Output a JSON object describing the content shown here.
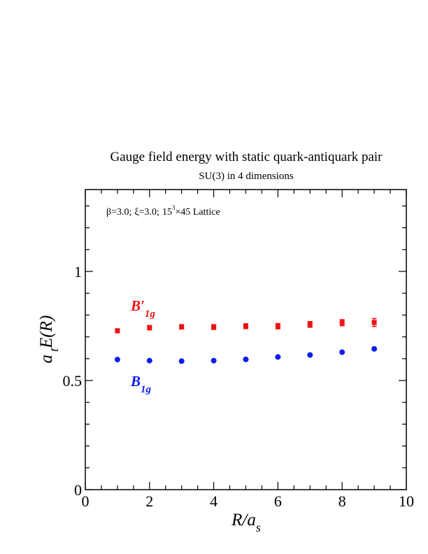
{
  "chart_data": {
    "type": "scatter",
    "title": "Gauge field energy with static quark-antiquark pair",
    "subtitle": "SU(3) in 4 dimensions",
    "annotation": {
      "beta": "β=3.0;",
      "xi": "ξ=3.0;",
      "lattice_base": "15",
      "lattice_exp": "3",
      "lattice_rest": "×45 Lattice"
    },
    "xlabel": {
      "main": "R/a",
      "sub": "s"
    },
    "ylabel": {
      "pre": "a",
      "sub": "t",
      "post": "E(R)"
    },
    "xlim": [
      0,
      10
    ],
    "ylim": [
      0,
      1.375
    ],
    "x_ticks": [
      "0",
      "2",
      "4",
      "6",
      "8",
      "10"
    ],
    "y_ticks": [
      "0",
      "0.5",
      "1"
    ],
    "series": [
      {
        "name_main": "B′",
        "name_sub": "1g",
        "color": "#ee1111",
        "marker": "square",
        "x": [
          1,
          2,
          3,
          4,
          5,
          6,
          7,
          8,
          9
        ],
        "y": [
          0.728,
          0.742,
          0.746,
          0.745,
          0.749,
          0.749,
          0.757,
          0.765,
          0.766
        ],
        "err": [
          0.009,
          0.01,
          0.01,
          0.011,
          0.011,
          0.012,
          0.013,
          0.014,
          0.018
        ]
      },
      {
        "name_main": "B",
        "name_sub": "1g",
        "color": "#0a1eee",
        "marker": "circle",
        "x": [
          1,
          2,
          3,
          4,
          5,
          6,
          7,
          8,
          9
        ],
        "y": [
          0.596,
          0.591,
          0.589,
          0.591,
          0.597,
          0.608,
          0.617,
          0.63,
          0.645
        ],
        "err": [
          0,
          0,
          0,
          0,
          0,
          0,
          0,
          0,
          0
        ]
      }
    ],
    "grid": false
  }
}
